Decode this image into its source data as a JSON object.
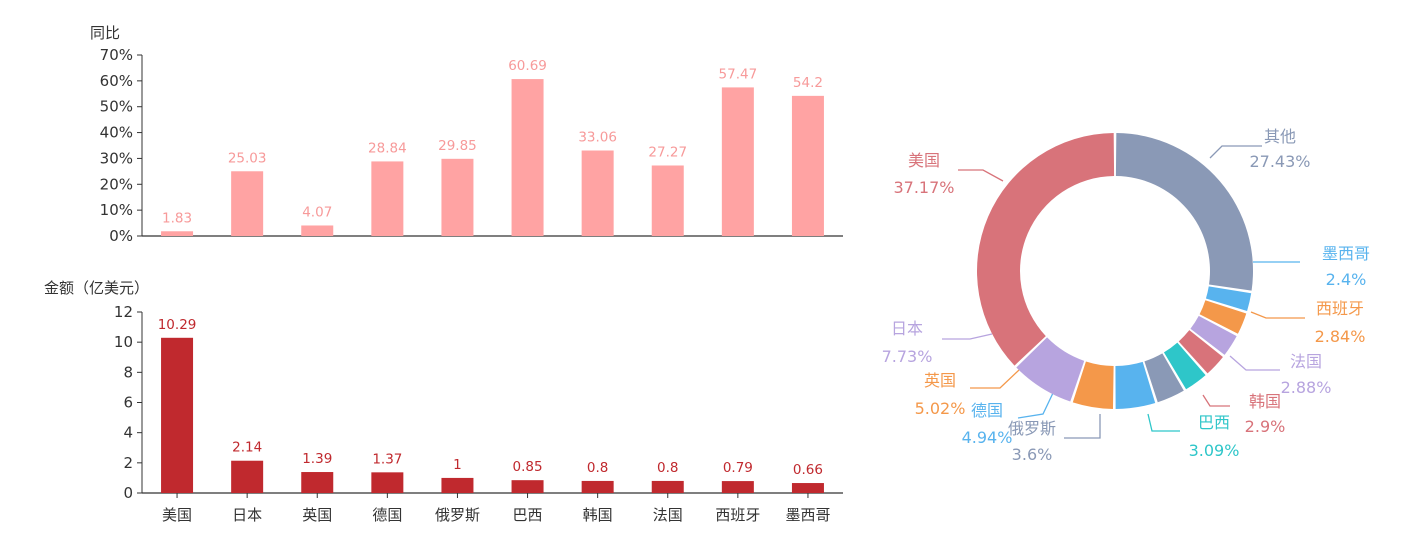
{
  "colors": {
    "yoy_bar": "#ffa3a3",
    "yoy_label": "#f79a9a",
    "amount_bar": "#c0292e",
    "amount_label": "#c0292e",
    "axis": "#333333"
  },
  "chart_data": [
    {
      "type": "bar",
      "ylabel": "同比",
      "categories": [
        "美国",
        "日本",
        "英国",
        "德国",
        "俄罗斯",
        "巴西",
        "韩国",
        "法国",
        "西班牙",
        "墨西哥"
      ],
      "values": [
        1.83,
        25.03,
        4.07,
        28.84,
        29.85,
        60.69,
        33.06,
        27.27,
        57.47,
        54.2
      ],
      "value_labels": [
        "1.83",
        "25.03",
        "4.07",
        "28.84",
        "29.85",
        "60.69",
        "33.06",
        "27.27",
        "57.47",
        "54.2"
      ],
      "ylim": [
        0,
        70
      ],
      "yticks": [
        "0%",
        "10%",
        "20%",
        "30%",
        "40%",
        "50%",
        "60%",
        "70%"
      ],
      "grid": false
    },
    {
      "type": "bar",
      "ylabel": "金额（亿美元）",
      "categories": [
        "美国",
        "日本",
        "英国",
        "德国",
        "俄罗斯",
        "巴西",
        "韩国",
        "法国",
        "西班牙",
        "墨西哥"
      ],
      "values": [
        10.29,
        2.14,
        1.39,
        1.37,
        1,
        0.85,
        0.8,
        0.8,
        0.79,
        0.66
      ],
      "value_labels": [
        "10.29",
        "2.14",
        "1.39",
        "1.37",
        "1",
        "0.85",
        "0.8",
        "0.8",
        "0.79",
        "0.66"
      ],
      "ylim": [
        0,
        12
      ],
      "yticks": [
        "0",
        "2",
        "4",
        "6",
        "8",
        "10",
        "12"
      ],
      "grid": false
    },
    {
      "type": "pie",
      "donut": true,
      "slices": [
        {
          "name": "其他",
          "value": 27.43,
          "label": "27.43%",
          "color": "#8a99b6"
        },
        {
          "name": "墨西哥",
          "value": 2.4,
          "label": "2.4%",
          "color": "#58b3ee"
        },
        {
          "name": "西班牙",
          "value": 2.84,
          "label": "2.84%",
          "color": "#f4984a"
        },
        {
          "name": "法国",
          "value": 2.88,
          "label": "2.88%",
          "color": "#b7a4df"
        },
        {
          "name": "韩国",
          "value": 2.9,
          "label": "2.9%",
          "color": "#d8737a"
        },
        {
          "name": "巴西",
          "value": 3.09,
          "label": "3.09%",
          "color": "#2ec6c9"
        },
        {
          "name": "俄罗斯",
          "value": 3.6,
          "label": "3.6%",
          "color": "#8a99b6"
        },
        {
          "name": "德国",
          "value": 4.94,
          "label": "4.94%",
          "color": "#58b3ee"
        },
        {
          "name": "英国",
          "value": 5.02,
          "label": "5.02%",
          "color": "#f4984a"
        },
        {
          "name": "日本",
          "value": 7.73,
          "label": "7.73%",
          "color": "#b7a4df"
        },
        {
          "name": "美国",
          "value": 37.17,
          "label": "37.17%",
          "color": "#d8737a"
        }
      ]
    }
  ]
}
